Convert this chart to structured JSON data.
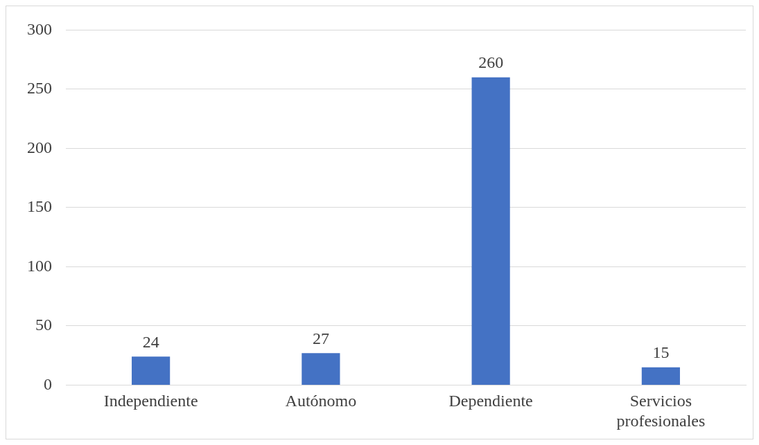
{
  "chart_data": {
    "type": "bar",
    "categories": [
      "Independiente",
      "Autónomo",
      "Dependiente",
      "Servicios profesionales"
    ],
    "values": [
      24,
      27,
      260,
      15
    ],
    "color": "#4472c4",
    "ylim": [
      0,
      300
    ],
    "yticks": [
      0,
      50,
      100,
      150,
      200,
      250,
      300
    ],
    "grid": "y",
    "data_labels": true,
    "legend": false
  }
}
